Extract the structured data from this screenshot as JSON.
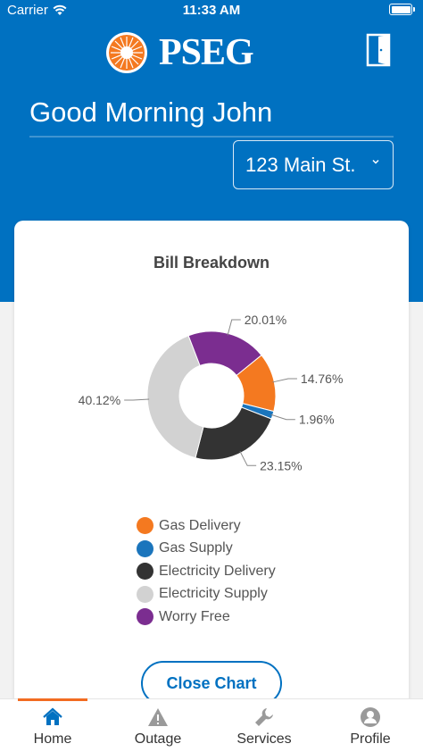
{
  "status_bar": {
    "carrier": "Carrier",
    "time": "11:33 AM"
  },
  "header": {
    "brand": "PSEG",
    "greeting": "Good Morning John",
    "address": "123 Main St.",
    "logo_icon": "sun-icon",
    "logout_icon": "door-exit-icon"
  },
  "card": {
    "title": "Bill Breakdown",
    "close_button": "Close Chart"
  },
  "chart_data": {
    "type": "pie",
    "title": "Bill Breakdown",
    "categories": [
      "Gas Delivery",
      "Gas Supply",
      "Electricity Delivery",
      "Electricity Supply",
      "Worry Free"
    ],
    "values": [
      14.76,
      1.96,
      23.15,
      40.12,
      20.01
    ],
    "labels": [
      "14.76%",
      "1.96%",
      "23.15%",
      "40.12%",
      "20.01%"
    ],
    "colors": [
      "#f47920",
      "#1b75bc",
      "#333333",
      "#d2d2d2",
      "#7b2d90"
    ],
    "legend_position": "bottom"
  },
  "tabs": [
    {
      "label": "Home",
      "icon": "house-icon",
      "active": true
    },
    {
      "label": "Outage",
      "icon": "warning-triangle-icon",
      "active": false
    },
    {
      "label": "Services",
      "icon": "wrench-icon",
      "active": false
    },
    {
      "label": "Profile",
      "icon": "person-icon",
      "active": false
    }
  ],
  "colors": {
    "brand_blue": "#0071c1",
    "accent_orange": "#f26c21"
  }
}
